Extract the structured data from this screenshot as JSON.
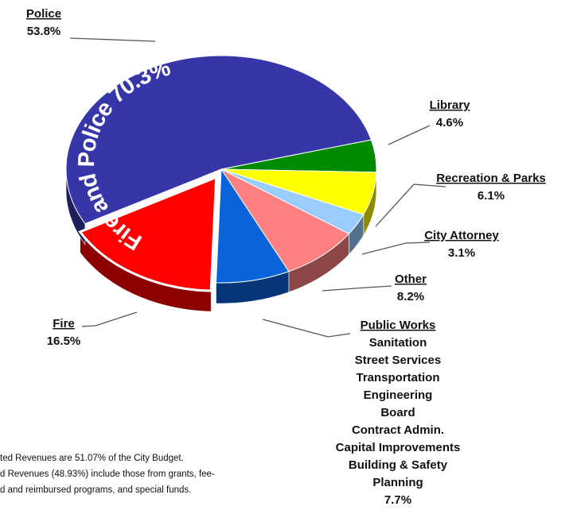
{
  "chart_data": {
    "type": "pie",
    "categories": [
      "Library",
      "Recreation & Parks",
      "City Attorney",
      "Other",
      "Public Works",
      "Fire",
      "Police"
    ],
    "values": [
      4.6,
      6.1,
      3.1,
      8.2,
      7.7,
      16.5,
      53.8
    ],
    "value_labels": [
      "4.6%",
      "6.1%",
      "3.1%",
      "8.2%",
      "7.7%",
      "16.5%",
      "53.8%"
    ],
    "colors": [
      "#008a00",
      "#ffff00",
      "#99ccff",
      "#ff8080",
      "#0a63d8",
      "#ff0000",
      "#3636a8"
    ],
    "annotation": "Fire and Police 70.3%",
    "public_works_departments": [
      "Sanitation",
      "Street Services",
      "Transportation",
      "Engineering",
      "Board",
      "Contract Admin.",
      "Capital Improvements",
      "Building & Safety",
      "Planning"
    ],
    "footnote": [
      "ted Revenues are 51.07% of the City Budget.",
      "d Revenues (48.93%) include those from grants, fee-",
      "d and reimbursed programs, and special funds."
    ]
  }
}
